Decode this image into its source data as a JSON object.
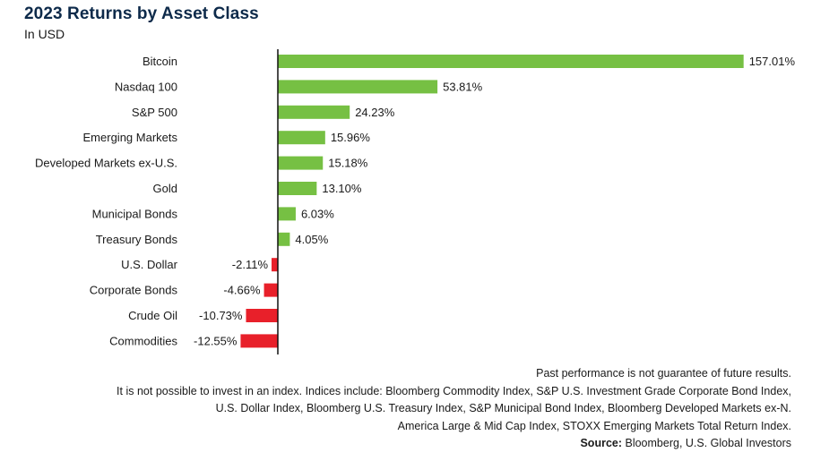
{
  "title": "2023 Returns by Asset Class",
  "subtitle": "In USD",
  "colors": {
    "positive": "#76c043",
    "negative": "#e8202a",
    "axis": "#111111"
  },
  "chart_data": {
    "type": "bar",
    "orientation": "horizontal",
    "categories": [
      "Bitcoin",
      "Nasdaq 100",
      "S&P 500",
      "Emerging Markets",
      "Developed Markets ex-U.S.",
      "Gold",
      "Municipal Bonds",
      "Treasury Bonds",
      "U.S. Dollar",
      "Corporate Bonds",
      "Crude Oil",
      "Commodities"
    ],
    "values": [
      157.01,
      53.81,
      24.23,
      15.96,
      15.18,
      13.1,
      6.03,
      4.05,
      -2.11,
      -4.66,
      -10.73,
      -12.55
    ],
    "labels": [
      "157.01%",
      "53.81%",
      "24.23%",
      "15.96%",
      "15.18%",
      "13.10%",
      "6.03%",
      "4.05%",
      "-2.11%",
      "-4.66%",
      "-10.73%",
      "-12.55%"
    ],
    "title": "2023 Returns by Asset Class",
    "subtitle": "In USD",
    "xlim": [
      -14,
      157.01
    ],
    "grid": false,
    "legend": "none"
  },
  "footer": {
    "lines": [
      "Past performance is not guarantee of future results.",
      "It is not possible to invest in an index. Indices include: Bloomberg Commodity Index, S&P U.S. Investment Grade Corporate Bond Index,",
      "U.S. Dollar Index, Bloomberg U.S. Treasury Index, S&P Municipal Bond Index, Bloomberg Developed Markets ex-N.",
      "America Large & Mid Cap Index, STOXX Emerging Markets Total Return Index."
    ],
    "source_label": "Source:",
    "source_text": " Bloomberg, U.S. Global Investors"
  }
}
